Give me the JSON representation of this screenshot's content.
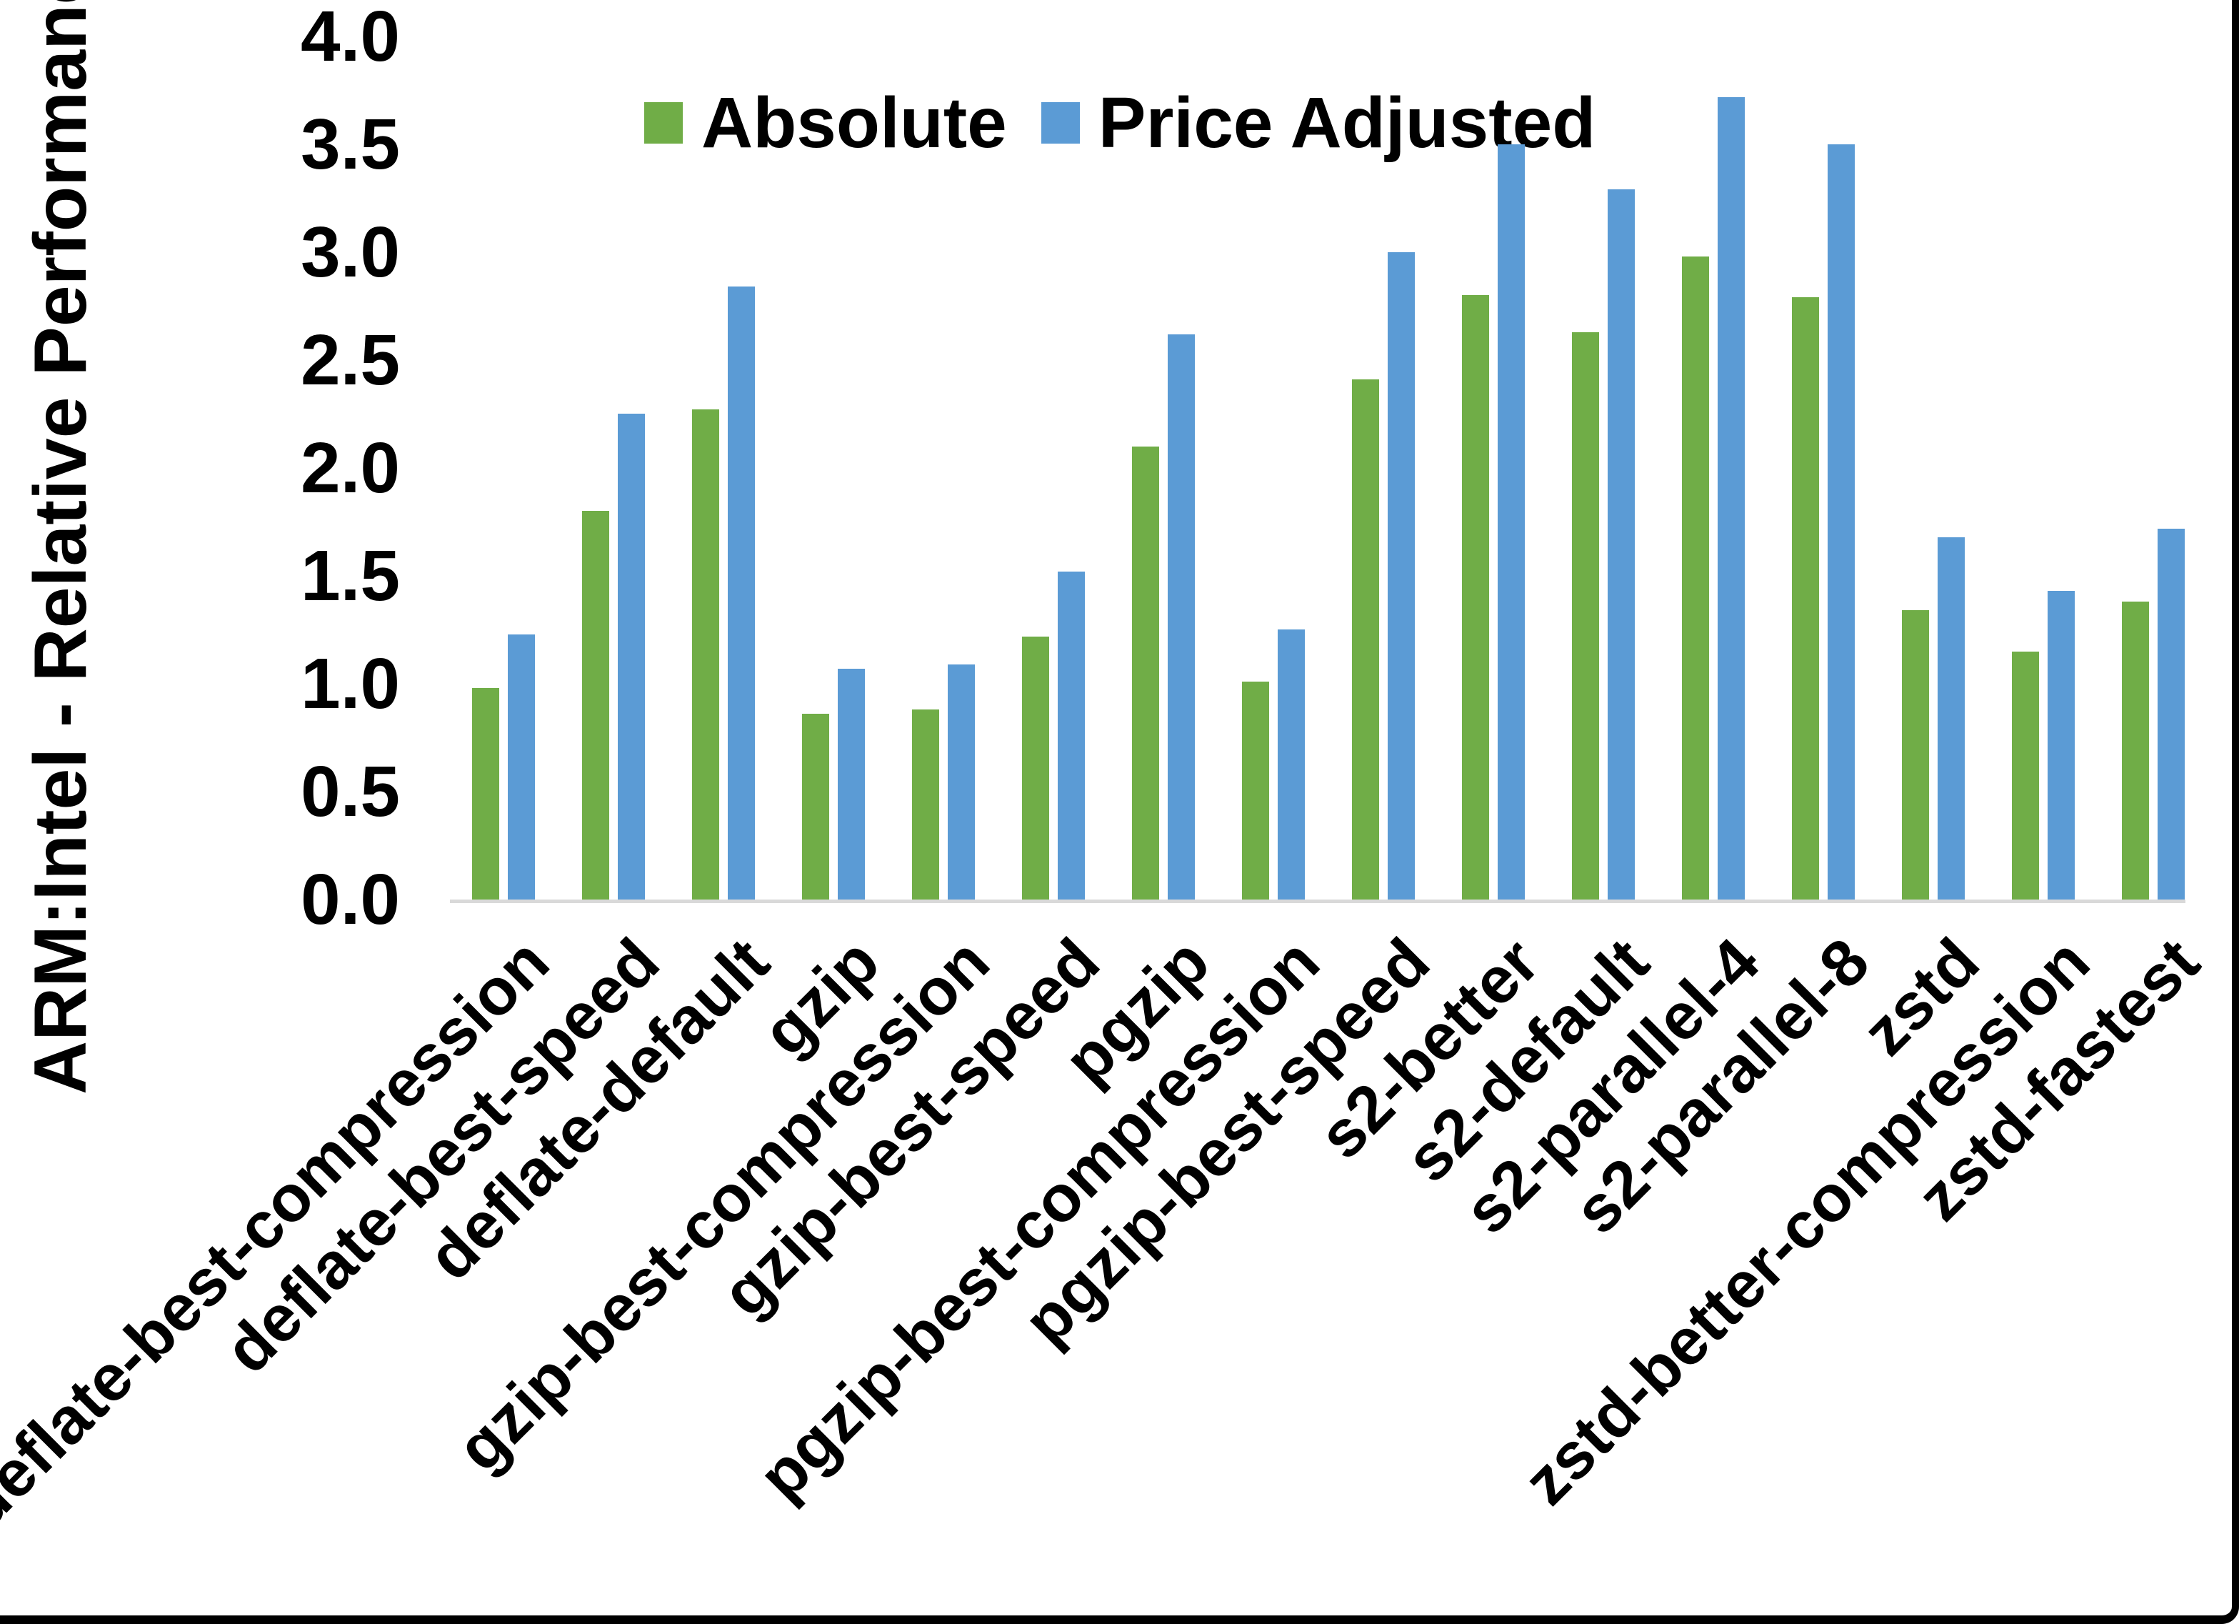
{
  "chart_data": {
    "type": "bar",
    "title": "",
    "ylabel": "ARM:Intel - Relative Performance",
    "xlabel": "",
    "ylim": [
      0.0,
      4.0
    ],
    "ytick_labels": [
      "0.0",
      "0.5",
      "1.0",
      "1.5",
      "2.0",
      "2.5",
      "3.0",
      "3.5",
      "4.0"
    ],
    "grid": false,
    "legend_position": "top-center",
    "axis_line_color": "#d9d9d9",
    "categories": [
      "deflate-best-compression",
      "deflate-best-speed",
      "deflate-default",
      "gzip",
      "gzip-best-compression",
      "gzip-best-speed",
      "pgzip",
      "pgzip-best-compression",
      "pgzip-best-speed",
      "s2-better",
      "s2-default",
      "s2-parallel-4",
      "s2-parallel-8",
      "zstd",
      "zstd-better-compression",
      "zstd-fastest"
    ],
    "series": [
      {
        "name": "Absolute",
        "color": "#70AD47",
        "values": [
          0.98,
          1.8,
          2.27,
          0.86,
          0.88,
          1.22,
          2.1,
          1.01,
          2.41,
          2.8,
          2.63,
          2.98,
          2.79,
          1.34,
          1.15,
          1.38
        ]
      },
      {
        "name": "Price Adjusted",
        "color": "#5B9BD5",
        "values": [
          1.23,
          2.25,
          2.84,
          1.07,
          1.09,
          1.52,
          2.62,
          1.25,
          3.0,
          3.5,
          3.29,
          3.72,
          3.5,
          1.68,
          1.43,
          1.72
        ]
      }
    ]
  }
}
